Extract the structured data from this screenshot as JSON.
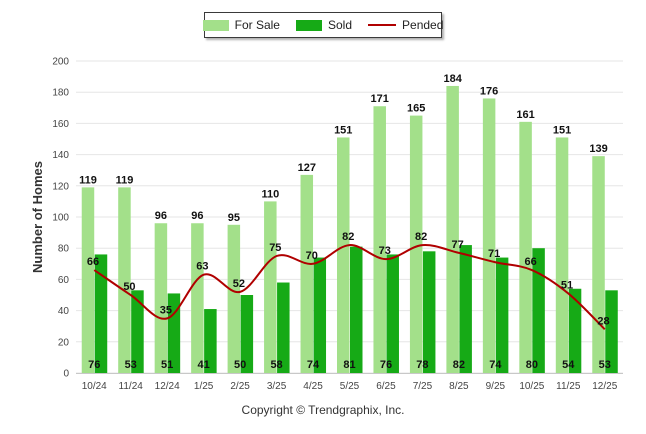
{
  "chart_data": {
    "type": "bar",
    "title": "",
    "xlabel": "",
    "ylabel": "Number of Homes",
    "ylim": [
      0,
      200
    ],
    "yticks": [
      0,
      20,
      40,
      60,
      80,
      100,
      120,
      140,
      160,
      180,
      200
    ],
    "categories": [
      "10/24",
      "11/24",
      "12/24",
      "1/25",
      "2/25",
      "3/25",
      "4/25",
      "5/25",
      "6/25",
      "7/25",
      "8/25",
      "9/25",
      "10/25",
      "11/25",
      "12/25"
    ],
    "series": [
      {
        "name": "For Sale",
        "kind": "bar",
        "color": "#a3e08a",
        "values": [
          119,
          119,
          96,
          96,
          95,
          110,
          127,
          151,
          171,
          165,
          184,
          176,
          161,
          151,
          139
        ]
      },
      {
        "name": "Sold",
        "kind": "bar",
        "color": "#16aa16",
        "values": [
          76,
          53,
          51,
          41,
          50,
          58,
          74,
          81,
          76,
          78,
          82,
          74,
          80,
          54,
          53
        ]
      },
      {
        "name": "Pended",
        "kind": "line",
        "color": "#b00000",
        "values": [
          66,
          50,
          35,
          63,
          52,
          75,
          70,
          82,
          73,
          82,
          77,
          71,
          66,
          51,
          28
        ]
      }
    ],
    "legend_position": "top-center",
    "grid": true
  },
  "footer": {
    "copyright": "Copyright © Trendgraphix, Inc."
  }
}
